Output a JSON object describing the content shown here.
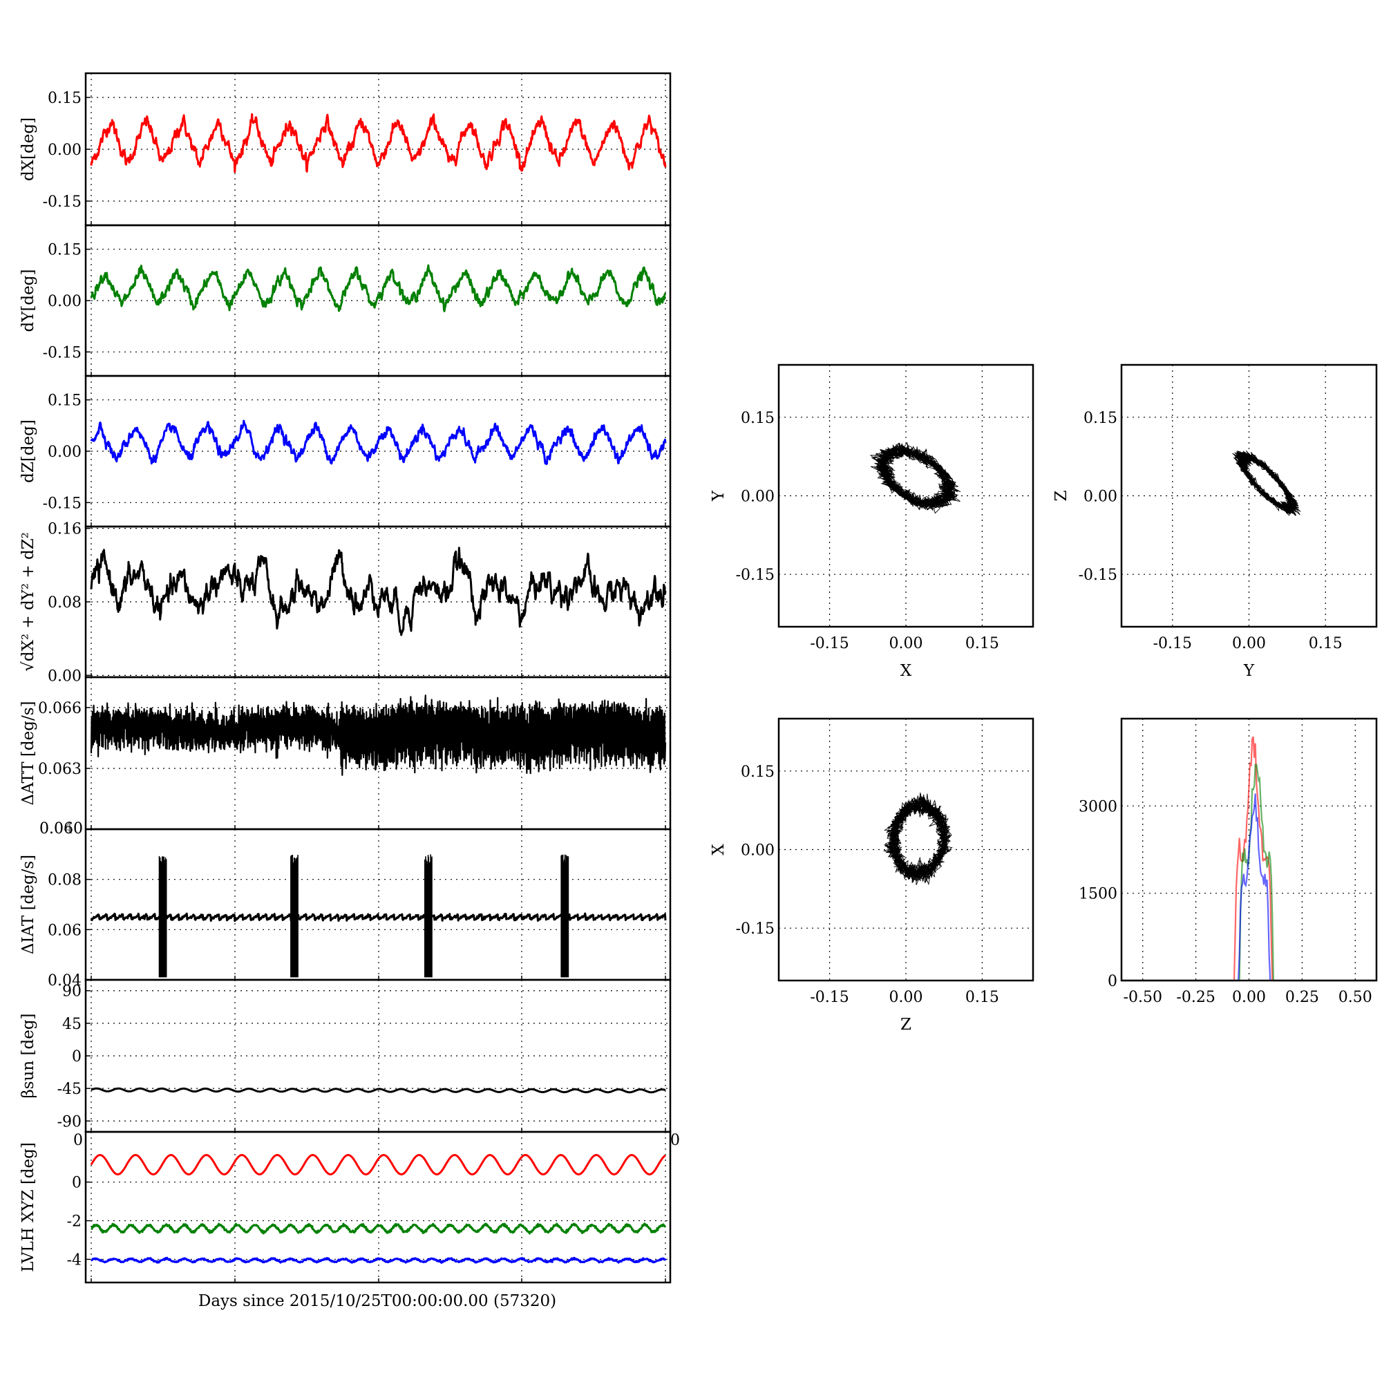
{
  "colors": {
    "x": "#ff0000",
    "y": "#008000",
    "z": "#0000ff",
    "k": "#000000"
  },
  "figure": {
    "xlabel": "Days since 2015/10/25T00:00:00.00 (57320)",
    "overlap_labels": {
      "att_bottom": "0.060",
      "att_overlay": "0.040",
      "beta_bottom_left": "0",
      "beta_bottom_right": "0"
    }
  },
  "chart_data": [
    {
      "name": "dX",
      "type": "line",
      "ylabel": "dX[deg]",
      "ylim": [
        -0.22,
        0.22
      ],
      "yticks": [
        "0.15",
        "0.00",
        "-0.15"
      ],
      "ytick_values": [
        0.15,
        0.0,
        -0.15
      ],
      "x_range_days": [
        0,
        12
      ],
      "cycles": 16,
      "series": [
        {
          "color": "x",
          "mean": 0.02,
          "amplitude": 0.065,
          "noise": 0.012
        }
      ]
    },
    {
      "name": "dY",
      "type": "line",
      "ylabel": "dY[deg]",
      "ylim": [
        -0.22,
        0.22
      ],
      "yticks": [
        "0.15",
        "0.00",
        "-0.15"
      ],
      "ytick_values": [
        0.15,
        0.0,
        -0.15
      ],
      "x_range_days": [
        0,
        12
      ],
      "cycles": 16,
      "series": [
        {
          "color": "y",
          "mean": 0.035,
          "amplitude": 0.05,
          "noise": 0.01
        }
      ]
    },
    {
      "name": "dZ",
      "type": "line",
      "ylabel": "dZ[deg]",
      "ylim": [
        -0.22,
        0.22
      ],
      "yticks": [
        "0.15",
        "0.00",
        "-0.15"
      ],
      "ytick_values": [
        0.15,
        0.0,
        -0.15
      ],
      "x_range_days": [
        0,
        12
      ],
      "cycles": 16,
      "series": [
        {
          "color": "z",
          "mean": 0.025,
          "amplitude": 0.05,
          "noise": 0.01
        }
      ]
    },
    {
      "name": "norm",
      "type": "line",
      "ylabel": "√dX² + dY² + dZ²",
      "ylim": [
        -0.002,
        0.162
      ],
      "yticks": [
        "0.16",
        "0.08",
        "0.00"
      ],
      "ytick_values": [
        0.16,
        0.08,
        0.0
      ],
      "x_range_days": [
        0,
        12
      ],
      "series": [
        {
          "color": "k",
          "mean": 0.092,
          "amplitude": 0.02,
          "noise": 0.01
        }
      ]
    },
    {
      "name": "datt",
      "type": "line",
      "ylabel": "ΔATT [deg/s]",
      "ylim": [
        0.06,
        0.0675
      ],
      "yticks": [
        "0.066",
        "0.063"
      ],
      "ytick_values": [
        0.066,
        0.063
      ],
      "x_range_days": [
        0,
        12
      ],
      "series": [
        {
          "color": "k",
          "mean": 0.0645,
          "amplitude": 0.0012,
          "noise": 0.0006
        }
      ]
    },
    {
      "name": "diat",
      "type": "line",
      "ylabel": "ΔIAT [deg/s]",
      "ylim": [
        0.04,
        0.1
      ],
      "yticks": [
        "0.08",
        "0.06",
        "0.04"
      ],
      "ytick_values": [
        0.08,
        0.06,
        0.04
      ],
      "x_range_days": [
        0,
        12
      ],
      "spikes_days": [
        1.5,
        4.25,
        7.05,
        9.9
      ],
      "spike_range": [
        0.041,
        0.09
      ],
      "series": [
        {
          "color": "k",
          "mean": 0.065,
          "amplitude": 0.0015,
          "noise": 0.0008
        }
      ]
    },
    {
      "name": "beta",
      "type": "line",
      "ylabel": "βsun [deg]",
      "ylim": [
        -105,
        105
      ],
      "yticks": [
        "90",
        "45",
        "0",
        "-45",
        "-90"
      ],
      "ytick_values": [
        90,
        45,
        0,
        -45,
        -90
      ],
      "x_range_days": [
        0,
        12
      ],
      "series": [
        {
          "color": "k",
          "mean": -47,
          "amplitude": 2,
          "noise": 0
        }
      ]
    },
    {
      "name": "lvlh",
      "type": "line",
      "ylabel": "LVLH XYZ [deg]",
      "ylim": [
        -5.2,
        2.6
      ],
      "yticks": [
        "0",
        "-2",
        "-4"
      ],
      "ytick_values": [
        0,
        -2,
        -4
      ],
      "x_range_days": [
        0,
        12
      ],
      "series": [
        {
          "color": "x",
          "mean": 0.9,
          "amplitude": 0.5,
          "noise": 0
        },
        {
          "color": "y",
          "mean": -2.4,
          "amplitude": 0.18,
          "noise": 0.03
        },
        {
          "color": "z",
          "mean": -4.05,
          "amplitude": 0.08,
          "noise": 0.02
        }
      ]
    },
    {
      "name": "xy",
      "type": "scatter",
      "xlabel": "X",
      "ylabel": "Y",
      "xlim": [
        -0.25,
        0.25
      ],
      "ylim": [
        -0.25,
        0.25
      ],
      "xticks": [
        "-0.15",
        "0.00",
        "0.15"
      ],
      "yticks": [
        "0.15",
        "0.00",
        "-0.15"
      ],
      "tick_values": [
        -0.15,
        0.0,
        0.15
      ],
      "center": [
        0.02,
        0.035
      ],
      "radii": [
        0.065,
        0.05
      ],
      "correlation": -0.45
    },
    {
      "name": "yz",
      "type": "scatter",
      "xlabel": "Y",
      "ylabel": "Z",
      "xlim": [
        -0.25,
        0.25
      ],
      "ylim": [
        -0.25,
        0.25
      ],
      "xticks": [
        "-0.15",
        "0.00",
        "0.15"
      ],
      "yticks": [
        "0.15",
        "0.00",
        "-0.15"
      ],
      "tick_values": [
        -0.15,
        0.0,
        0.15
      ],
      "center": [
        0.035,
        0.025
      ],
      "radii": [
        0.05,
        0.05
      ],
      "correlation": -0.85
    },
    {
      "name": "zx",
      "type": "scatter",
      "xlabel": "Z",
      "ylabel": "X",
      "xlim": [
        -0.25,
        0.25
      ],
      "ylim": [
        -0.25,
        0.25
      ],
      "xticks": [
        "-0.15",
        "0.00",
        "0.15"
      ],
      "yticks": [
        "0.15",
        "0.00",
        "-0.15"
      ],
      "tick_values": [
        -0.15,
        0.0,
        0.15
      ],
      "center": [
        0.025,
        0.02
      ],
      "radii": [
        0.05,
        0.065
      ],
      "correlation": 0.05
    },
    {
      "name": "hist",
      "type": "line",
      "xlim": [
        -0.6,
        0.6
      ],
      "ylim": [
        0,
        4500
      ],
      "xticks": [
        "-0.50",
        "-0.25",
        "0.00",
        "0.25",
        "0.50"
      ],
      "xtick_values": [
        -0.5,
        -0.25,
        0.0,
        0.25,
        0.5
      ],
      "yticks": [
        "3000",
        "1500",
        "0"
      ],
      "ytick_values": [
        3000,
        1500,
        0
      ],
      "series": [
        {
          "color": "x",
          "center": 0.02,
          "width": 0.055,
          "peak": 4300
        },
        {
          "color": "y",
          "center": 0.035,
          "width": 0.05,
          "peak": 4100
        },
        {
          "color": "z",
          "center": 0.025,
          "width": 0.045,
          "peak": 3300
        }
      ]
    }
  ]
}
